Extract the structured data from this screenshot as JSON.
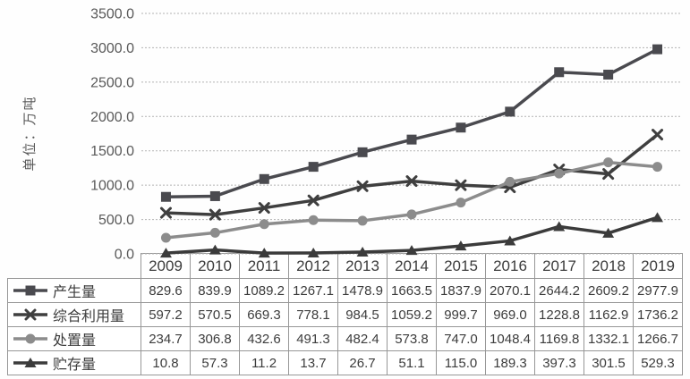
{
  "chart_data": {
    "type": "line",
    "title": "",
    "xlabel": "",
    "ylabel": "单位：万吨",
    "ylim": [
      0,
      3500
    ],
    "ytick_step": 500,
    "ytick_format": "one_decimal",
    "grid": true,
    "legend_position": "table-first-column",
    "categories": [
      "2009",
      "2010",
      "2011",
      "2012",
      "2013",
      "2014",
      "2015",
      "2016",
      "2017",
      "2018",
      "2019"
    ],
    "series": [
      {
        "name": "产生量",
        "marker": "square",
        "color": "#4a4a4f",
        "values": [
          829.6,
          839.9,
          1089.2,
          1267.1,
          1478.9,
          1663.5,
          1837.9,
          2070.1,
          2644.2,
          2609.2,
          2977.9
        ]
      },
      {
        "name": "综合利用量",
        "marker": "x",
        "color": "#3f3f3f",
        "values": [
          597.2,
          570.5,
          669.3,
          778.1,
          984.5,
          1059.2,
          999.7,
          969.0,
          1228.8,
          1162.9,
          1736.2
        ]
      },
      {
        "name": "处置量",
        "marker": "circle",
        "color": "#8c8c8c",
        "values": [
          234.7,
          306.8,
          432.6,
          491.3,
          482.4,
          573.8,
          747.0,
          1048.4,
          1169.8,
          1332.1,
          1266.7
        ]
      },
      {
        "name": "贮存量",
        "marker": "triangle",
        "color": "#3b3b3b",
        "values": [
          10.8,
          57.3,
          11.2,
          13.7,
          26.7,
          51.1,
          115.0,
          189.3,
          397.3,
          301.5,
          529.3
        ]
      }
    ]
  },
  "colors": {
    "grid": "#b3b3b3",
    "axis_text": "#595959",
    "table_border": "#979797",
    "table_text": "#3c3c3c"
  }
}
